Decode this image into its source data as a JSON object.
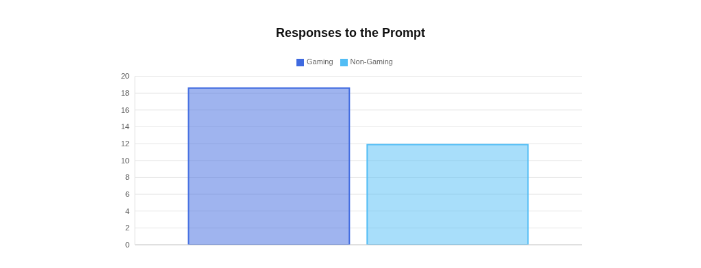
{
  "chart_data": {
    "type": "bar",
    "title": "Responses to the Prompt",
    "categories": [
      null
    ],
    "series": [
      {
        "name": "Gaming",
        "color": "#3f6ae0",
        "values": [
          18.6
        ]
      },
      {
        "name": "Non-Gaming",
        "color": "#52bdf5",
        "values": [
          11.9
        ]
      }
    ],
    "ylim": [
      0,
      20
    ],
    "yticks": [
      0,
      2,
      4,
      6,
      8,
      10,
      12,
      14,
      16,
      18,
      20
    ],
    "grid": "y",
    "legend": "top"
  }
}
